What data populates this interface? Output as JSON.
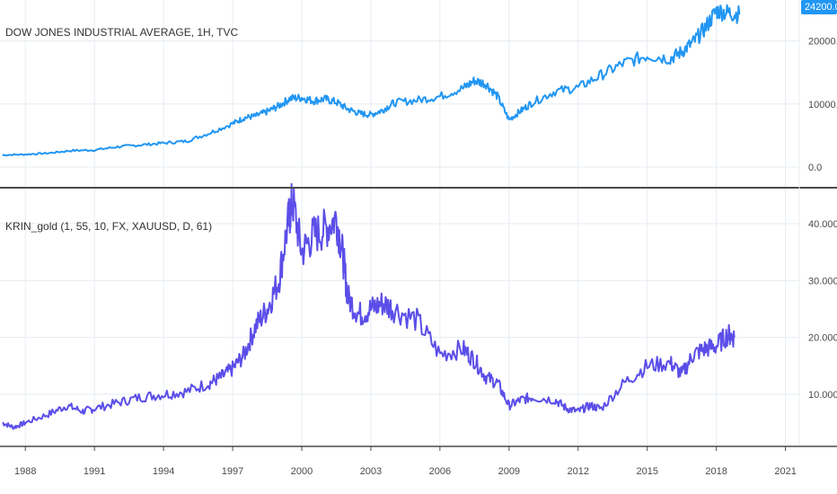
{
  "colors": {
    "background": "#ffffff",
    "grid": "#e6ecf2",
    "divider": "#4a4a4a",
    "axis_text": "#4a4a4a",
    "dow_line": "#2196f3",
    "gold_line": "#5b4ee8",
    "price_tag_bg": "#2196f3"
  },
  "chart_data": [
    {
      "type": "line",
      "pane": "top",
      "title": "DOW JONES INDUSTRIAL AVERAGE, 1H, TVC",
      "y_ticks": [
        "20000.0",
        "10000.0",
        "0.0"
      ],
      "y_tick_values": [
        20000,
        10000,
        0
      ],
      "ylim": [
        -3000,
        26500
      ],
      "current_value_label": "24200.0",
      "series": [
        {
          "x": [
            1987.0,
            1988.0,
            1989.0,
            1990.0,
            1991.0,
            1992.0,
            1993.0,
            1994.0,
            1995.0,
            1996.0,
            1997.0,
            1997.5,
            1998.0,
            1998.5,
            1999.0,
            1999.5,
            2000.0,
            2000.5,
            2001.0,
            2001.5,
            2002.0,
            2002.5,
            2003.0,
            2003.5,
            2004.0,
            2005.0,
            2006.0,
            2007.0,
            2007.5,
            2008.0,
            2008.5,
            2009.0,
            2009.5,
            2010.0,
            2011.0,
            2012.0,
            2013.0,
            2014.0,
            2015.0,
            2016.0,
            2016.5,
            2017.0,
            2017.5,
            2018.0,
            2018.5,
            2019.0
          ],
          "values": [
            1900,
            2000,
            2200,
            2600,
            2700,
            3200,
            3500,
            3800,
            4100,
            5400,
            6900,
            7800,
            8100,
            8800,
            9700,
            10900,
            11000,
            10500,
            10800,
            10300,
            9200,
            8500,
            8300,
            9000,
            10200,
            10600,
            11200,
            12500,
            13700,
            13200,
            11200,
            7500,
            8900,
            10200,
            12000,
            12600,
            14600,
            16500,
            17700,
            17200,
            18300,
            19800,
            22000,
            24800,
            24500,
            24200
          ]
        }
      ]
    },
    {
      "type": "line",
      "pane": "bottom",
      "title": "KRIN_gold (1, 55, 10, FX, XAUUSD, D, 61)",
      "y_ticks": [
        "40.0000",
        "30.0000",
        "20.0000",
        "10.0000"
      ],
      "y_tick_values": [
        40,
        30,
        20,
        10
      ],
      "ylim": [
        1,
        46
      ],
      "x_ticks": [
        "1988",
        "1991",
        "1994",
        "1997",
        "2000",
        "2003",
        "2006",
        "2009",
        "2012",
        "2015",
        "2018",
        "2021"
      ],
      "x_tick_values": [
        1988,
        1991,
        1994,
        1997,
        2000,
        2003,
        2006,
        2009,
        2012,
        2015,
        2018,
        2021
      ],
      "xlim": [
        1986.9,
        2021.6
      ],
      "series": [
        {
          "x": [
            1987.0,
            1987.5,
            1988.0,
            1989.0,
            1989.8,
            1990.5,
            1991.0,
            1992.0,
            1993.0,
            1994.0,
            1995.0,
            1996.0,
            1996.5,
            1997.0,
            1997.5,
            1998.0,
            1998.5,
            1999.0,
            1999.4,
            1999.6,
            2000.0,
            2000.5,
            2001.0,
            2001.5,
            2001.8,
            2002.0,
            2002.5,
            2003.0,
            2003.5,
            2004.0,
            2005.0,
            2006.0,
            2007.0,
            2007.5,
            2008.0,
            2008.5,
            2009.0,
            2009.5,
            2010.0,
            2011.0,
            2011.5,
            2012.0,
            2012.5,
            2013.0,
            2014.0,
            2015.0,
            2016.0,
            2016.5,
            2017.0,
            2017.5,
            2018.0,
            2018.5,
            2018.8
          ],
          "values": [
            5.0,
            4.2,
            5.0,
            6.5,
            8.0,
            7.0,
            7.5,
            8.5,
            9.5,
            10.0,
            10.5,
            12.0,
            13.0,
            14.5,
            17.0,
            22.0,
            25.0,
            30.0,
            40.0,
            44.0,
            35.0,
            38.0,
            39.0,
            41.0,
            34.0,
            27.0,
            24.0,
            25.0,
            26.0,
            25.0,
            23.0,
            17.0,
            18.0,
            16.0,
            13.0,
            12.0,
            8.0,
            9.0,
            9.5,
            9.0,
            7.5,
            7.0,
            8.0,
            7.5,
            12.0,
            15.0,
            15.5,
            13.5,
            17.0,
            18.0,
            18.5,
            20.5,
            20.0
          ]
        }
      ]
    }
  ]
}
